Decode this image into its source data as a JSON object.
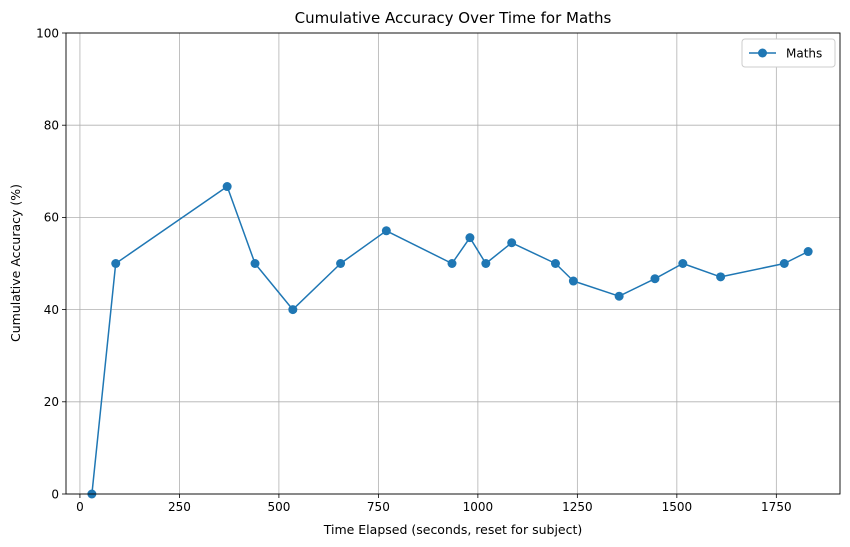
{
  "chart_data": {
    "type": "line",
    "title": "Cumulative Accuracy Over Time for Maths",
    "xlabel": "Time Elapsed (seconds, reset for subject)",
    "ylabel": "Cumulative Accuracy (%)",
    "xlim": [
      -35,
      1910
    ],
    "ylim": [
      0,
      100
    ],
    "xticks": [
      0,
      250,
      500,
      750,
      1000,
      1250,
      1500,
      1750
    ],
    "yticks": [
      0,
      20,
      40,
      60,
      80,
      100
    ],
    "grid": true,
    "legend_position": "top-right",
    "series": [
      {
        "name": "Maths",
        "color": "#1f77b4",
        "marker": "circle",
        "points": [
          [
            30,
            0
          ],
          [
            90,
            50
          ],
          [
            370,
            66.7
          ],
          [
            440,
            50
          ],
          [
            535,
            40
          ],
          [
            655,
            50
          ],
          [
            770,
            57.1
          ],
          [
            935,
            50
          ],
          [
            980,
            55.6
          ],
          [
            1020,
            50
          ],
          [
            1085,
            54.5
          ],
          [
            1195,
            50
          ],
          [
            1240,
            46.2
          ],
          [
            1355,
            42.9
          ],
          [
            1445,
            46.7
          ],
          [
            1515,
            50
          ],
          [
            1610,
            47.1
          ],
          [
            1770,
            50
          ],
          [
            1830,
            52.6
          ]
        ]
      }
    ]
  }
}
